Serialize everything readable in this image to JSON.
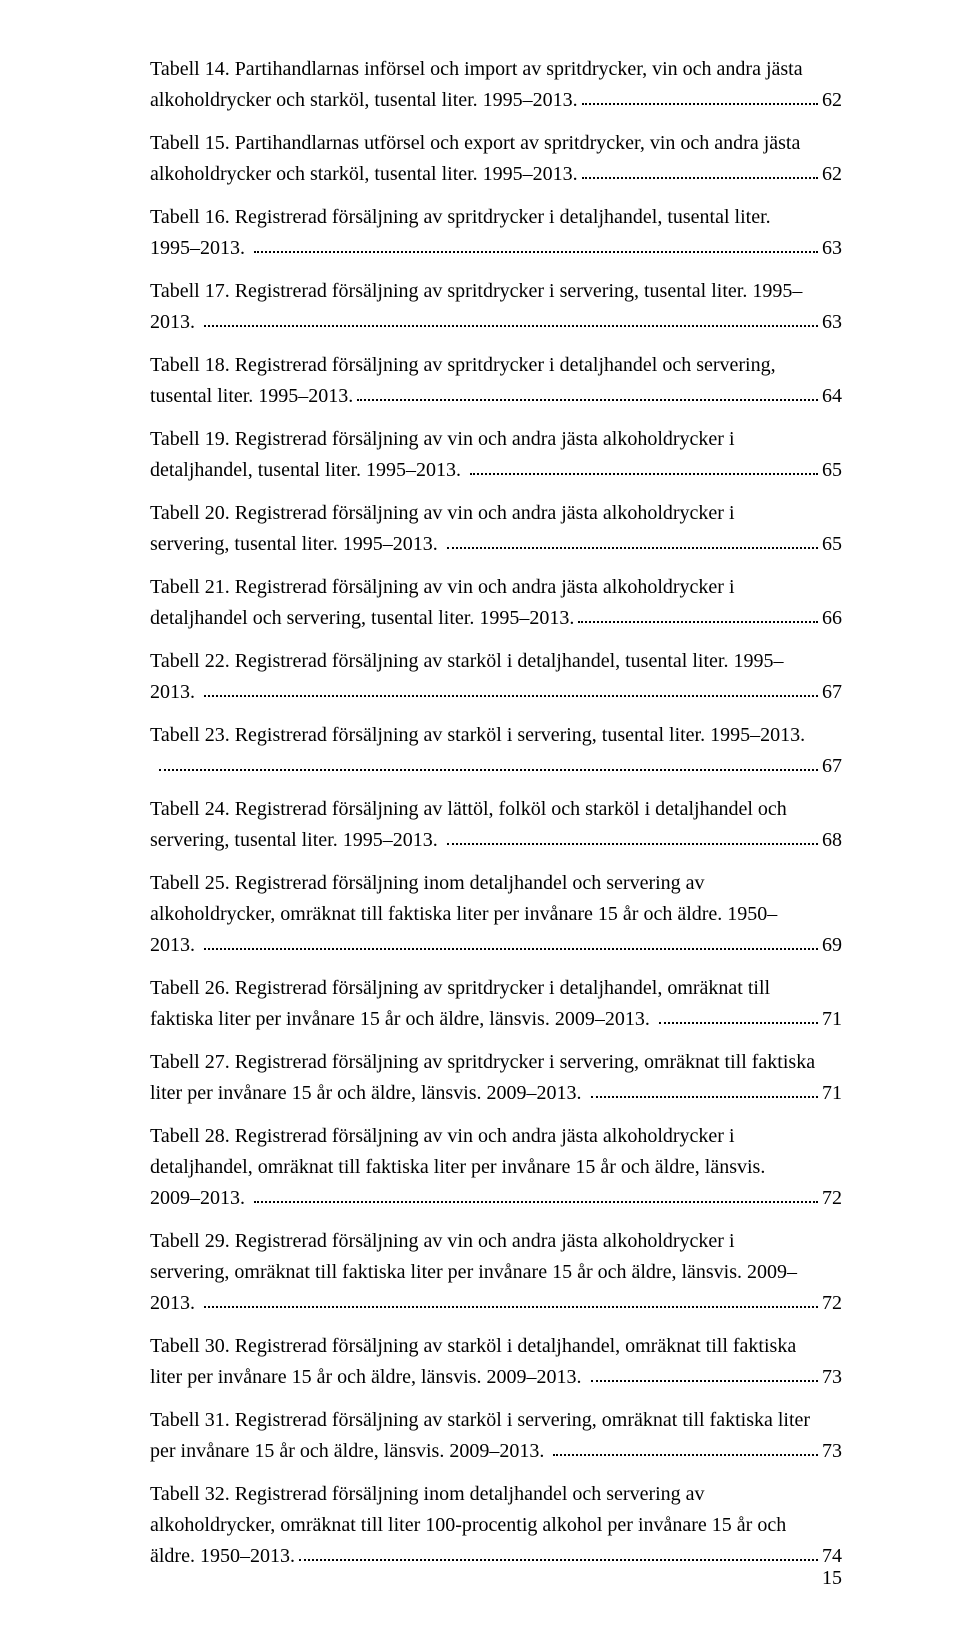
{
  "footer_page_number": "15",
  "entries": [
    {
      "lines": [
        "Tabell 14. Partihandlarnas införsel och import av spritdrycker, vin och andra jästa"
      ],
      "tail": "alkoholdrycker och starköl, tusental liter. 1995–2013.",
      "page": "62"
    },
    {
      "lines": [
        "Tabell 15. Partihandlarnas utförsel och export av spritdrycker, vin och andra jästa"
      ],
      "tail": "alkoholdrycker och starköl, tusental liter. 1995–2013.",
      "page": "62"
    },
    {
      "lines": [
        "Tabell 16. Registrerad försäljning av spritdrycker i detaljhandel, tusental liter."
      ],
      "tail": "1995–2013. ",
      "page": "63"
    },
    {
      "lines": [
        "Tabell 17. Registrerad försäljning av spritdrycker i servering, tusental liter. 1995–"
      ],
      "tail": "2013. ",
      "page": "63"
    },
    {
      "lines": [
        "Tabell 18. Registrerad försäljning av spritdrycker i detaljhandel och servering,"
      ],
      "tail": "tusental liter. 1995–2013.",
      "page": "64"
    },
    {
      "lines": [
        "Tabell 19. Registrerad försäljning av vin och andra jästa alkoholdrycker i"
      ],
      "tail": "detaljhandel, tusental liter. 1995–2013. ",
      "page": "65"
    },
    {
      "lines": [
        "Tabell 20. Registrerad försäljning av vin och andra jästa alkoholdrycker i"
      ],
      "tail": "servering, tusental liter. 1995–2013. ",
      "page": "65"
    },
    {
      "lines": [
        "Tabell 21. Registrerad försäljning av vin och andra jästa alkoholdrycker i"
      ],
      "tail": "detaljhandel och servering, tusental liter. 1995–2013.",
      "page": "66"
    },
    {
      "lines": [
        "Tabell 22. Registrerad försäljning av starköl i detaljhandel, tusental liter. 1995–"
      ],
      "tail": "2013. ",
      "page": "67"
    },
    {
      "lines": [
        "Tabell 23. Registrerad försäljning av starköl i servering, tusental liter. 1995–2013."
      ],
      "tail": " ",
      "page": "67"
    },
    {
      "lines": [
        "Tabell 24. Registrerad försäljning av lättöl, folköl och starköl i detaljhandel och"
      ],
      "tail": "servering, tusental liter. 1995–2013. ",
      "page": "68"
    },
    {
      "lines": [
        "Tabell 25. Registrerad försäljning inom detaljhandel och servering av",
        "alkoholdrycker, omräknat till faktiska liter per invånare 15 år och äldre. 1950–"
      ],
      "tail": "2013. ",
      "page": "69"
    },
    {
      "lines": [
        "Tabell 26. Registrerad försäljning av spritdrycker i detaljhandel, omräknat till"
      ],
      "tail": "faktiska liter per invånare 15 år och äldre, länsvis. 2009–2013. ",
      "page": "71"
    },
    {
      "lines": [
        "Tabell 27. Registrerad försäljning av spritdrycker i servering, omräknat till faktiska"
      ],
      "tail": "liter per invånare 15 år och äldre, länsvis. 2009–2013. ",
      "page": "71"
    },
    {
      "lines": [
        "Tabell 28. Registrerad försäljning av vin och andra jästa alkoholdrycker i",
        "detaljhandel, omräknat till faktiska liter per invånare 15 år och äldre, länsvis."
      ],
      "tail": "2009–2013. ",
      "page": "72"
    },
    {
      "lines": [
        "Tabell 29. Registrerad försäljning av vin och andra jästa alkoholdrycker i",
        "servering, omräknat till faktiska liter per invånare 15 år och äldre, länsvis. 2009–"
      ],
      "tail": "2013. ",
      "page": "72"
    },
    {
      "lines": [
        "Tabell 30. Registrerad försäljning av starköl i detaljhandel, omräknat till faktiska"
      ],
      "tail": "liter per invånare 15 år och äldre, länsvis. 2009–2013. ",
      "page": "73"
    },
    {
      "lines": [
        "Tabell 31. Registrerad försäljning av starköl i servering, omräknat till faktiska liter"
      ],
      "tail": "per invånare 15 år och äldre, länsvis. 2009–2013. ",
      "page": "73"
    },
    {
      "lines": [
        "Tabell 32. Registrerad försäljning inom detaljhandel och servering av",
        "alkoholdrycker, omräknat till liter 100-procentig alkohol per invånare 15 år och"
      ],
      "tail": "äldre. 1950–2013.",
      "page": "74"
    }
  ]
}
